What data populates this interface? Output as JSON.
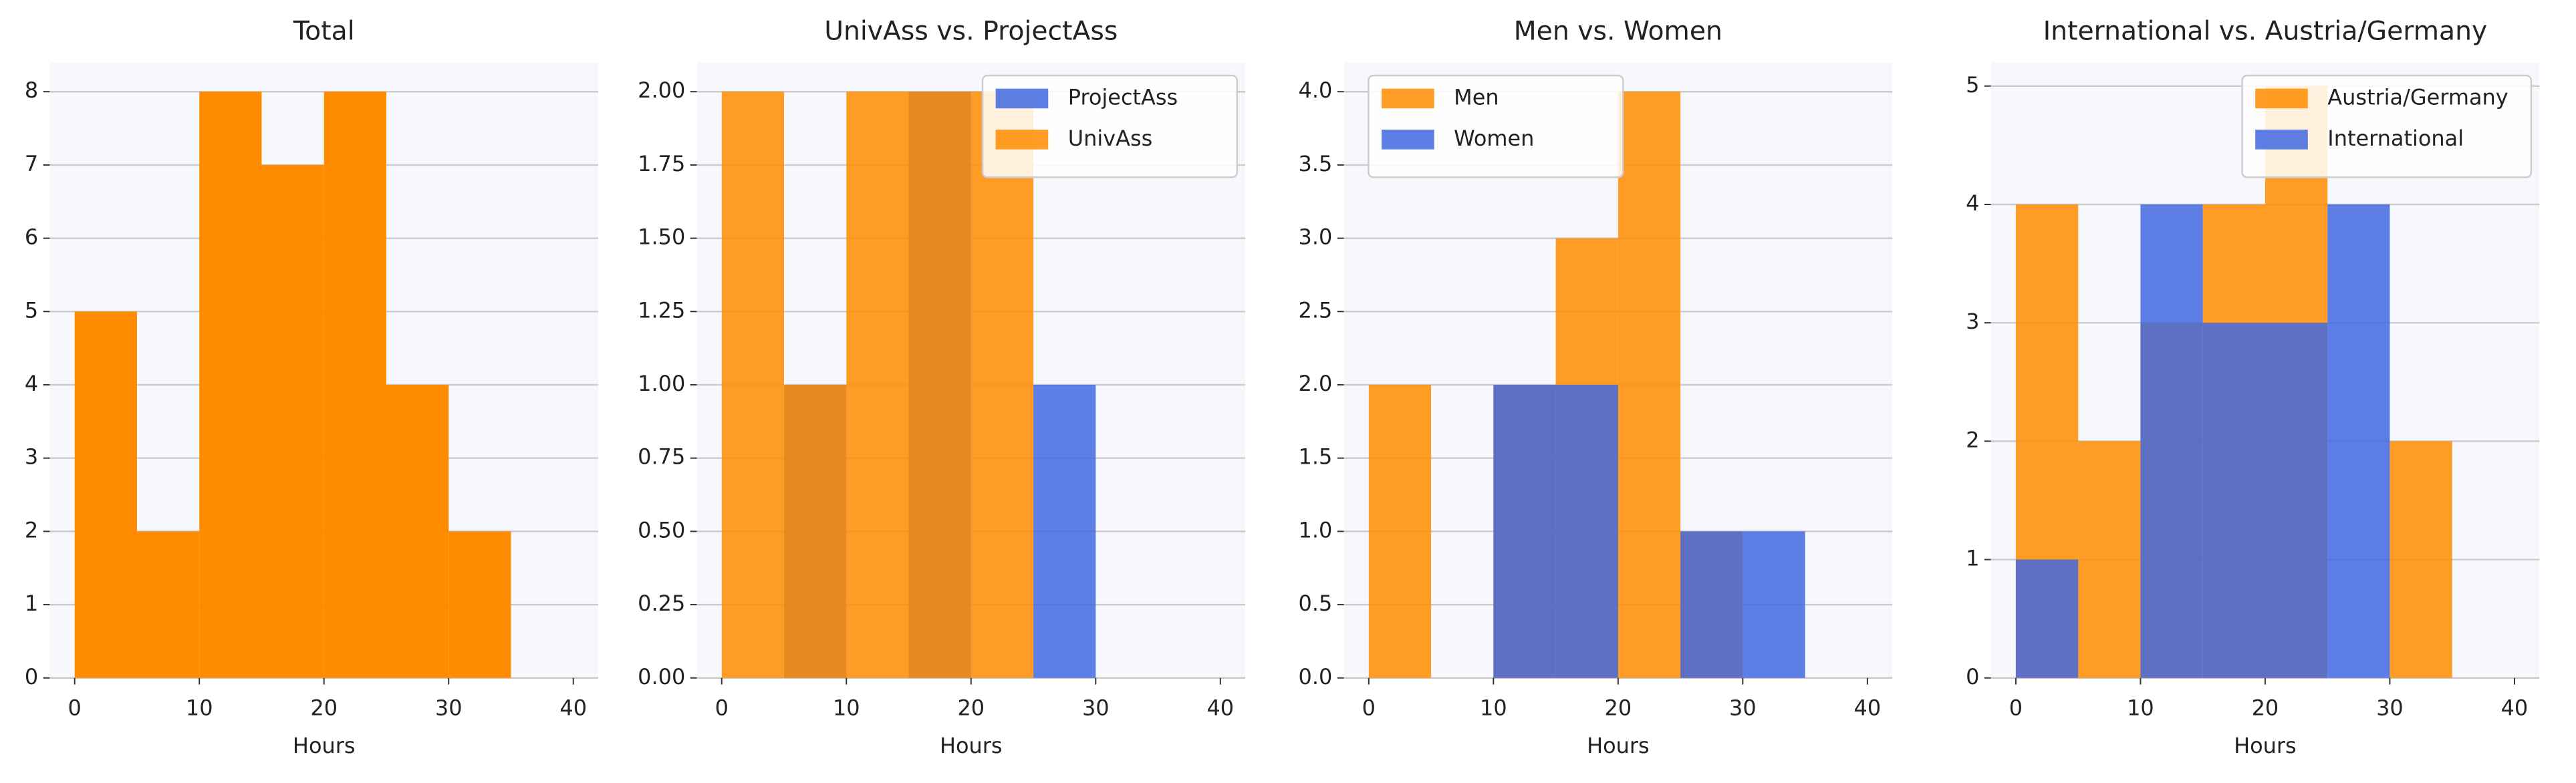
{
  "chart_data": [
    {
      "type": "histogram",
      "title": "Total",
      "xlabel": "Hours",
      "bins": [
        0,
        5,
        10,
        15,
        20,
        25,
        30,
        35
      ],
      "values": [
        5,
        2,
        8,
        7,
        8,
        4,
        2
      ],
      "color": "#ff8c00",
      "xlim": [
        -2,
        42
      ],
      "xticks": [
        0,
        10,
        20,
        30,
        40
      ],
      "ylim": [
        0,
        8.4
      ],
      "yticks": [
        0,
        1,
        2,
        3,
        4,
        5,
        6,
        7,
        8
      ],
      "grid": true
    },
    {
      "type": "histogram",
      "title": "UnivAss vs. ProjectAss",
      "xlabel": "Hours",
      "bins": [
        0,
        5,
        10,
        15,
        20,
        25,
        30,
        35,
        40
      ],
      "series": [
        {
          "name": "ProjectAss",
          "color": "#4169e1",
          "values": [
            0,
            1,
            0,
            2,
            0,
            1,
            0,
            0
          ]
        },
        {
          "name": "UnivAss",
          "color": "#ff8c00",
          "values": [
            2,
            1,
            2,
            2,
            2,
            0,
            0,
            0
          ]
        }
      ],
      "xlim": [
        -2,
        42
      ],
      "xticks": [
        0,
        10,
        20,
        30,
        40
      ],
      "ylim": [
        0,
        2.1
      ],
      "yticks": [
        {
          "value": 0,
          "label": "0.00"
        },
        {
          "value": 0.25,
          "label": "0.25"
        },
        {
          "value": 0.5,
          "label": "0.50"
        },
        {
          "value": 0.75,
          "label": "0.75"
        },
        {
          "value": 1,
          "label": "1.00"
        },
        {
          "value": 1.25,
          "label": "1.25"
        },
        {
          "value": 1.5,
          "label": "1.50"
        },
        {
          "value": 1.75,
          "label": "1.75"
        },
        {
          "value": 2,
          "label": "2.00"
        }
      ],
      "grid": true,
      "legend": "upper right"
    },
    {
      "type": "histogram",
      "title": "Men vs. Women",
      "xlabel": "Hours",
      "bins": [
        0,
        5,
        10,
        15,
        20,
        25,
        30,
        35,
        40
      ],
      "series": [
        {
          "name": "Men",
          "color": "#ff8c00",
          "values": [
            2,
            0,
            2,
            3,
            4,
            1,
            0,
            0
          ]
        },
        {
          "name": "Women",
          "color": "#4169e1",
          "values": [
            0,
            0,
            2,
            2,
            0,
            1,
            1,
            0
          ]
        }
      ],
      "xlim": [
        -2,
        42
      ],
      "xticks": [
        0,
        10,
        20,
        30,
        40
      ],
      "ylim": [
        0,
        4.2
      ],
      "yticks": [
        {
          "value": 0,
          "label": "0.0"
        },
        0.5,
        {
          "value": 1,
          "label": "1.0"
        },
        1.5,
        {
          "value": 2,
          "label": "2.0"
        },
        2.5,
        {
          "value": 3,
          "label": "3.0"
        },
        3.5,
        {
          "value": 4,
          "label": "4.0"
        }
      ],
      "grid": true,
      "legend": "upper left"
    },
    {
      "type": "histogram",
      "title": "International vs. Austria/Germany",
      "xlabel": "Hours",
      "bins": [
        0,
        5,
        10,
        15,
        20,
        25,
        30,
        35,
        40
      ],
      "series": [
        {
          "name": "Austria/Germany",
          "color": "#ff8c00",
          "values": [
            4,
            2,
            3,
            4,
            5,
            0,
            2,
            0
          ]
        },
        {
          "name": "International",
          "color": "#4169e1",
          "values": [
            1,
            0,
            4,
            3,
            3,
            4,
            0,
            0
          ]
        }
      ],
      "xlim": [
        -2,
        42
      ],
      "xticks": [
        0,
        10,
        20,
        30,
        40
      ],
      "ylim": [
        0,
        5.2
      ],
      "yticks": [
        0,
        1,
        2,
        3,
        4,
        5
      ],
      "grid": true,
      "legend": "upper right"
    }
  ]
}
